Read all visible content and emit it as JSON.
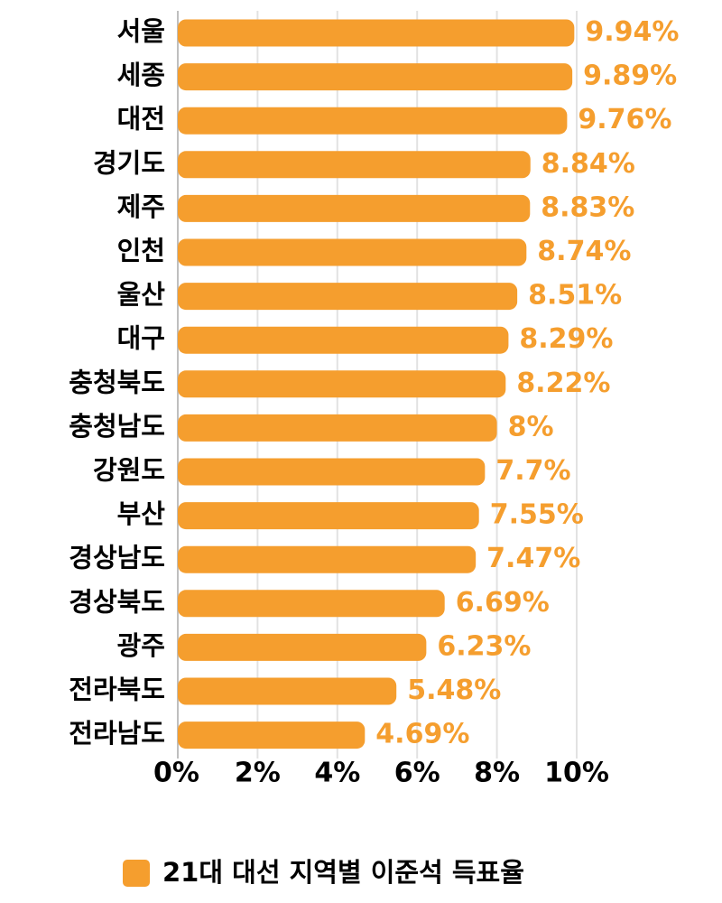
{
  "chart_data": {
    "type": "bar",
    "orientation": "horizontal",
    "categories": [
      "서울",
      "세종",
      "대전",
      "경기도",
      "제주",
      "인천",
      "울산",
      "대구",
      "충청북도",
      "충청남도",
      "강원도",
      "부산",
      "경상남도",
      "경상북도",
      "광주",
      "전라북도",
      "전라남도"
    ],
    "series": [
      {
        "name": "21대 대선 지역별 이준석 득표율",
        "values": [
          9.94,
          9.89,
          9.76,
          8.84,
          8.83,
          8.74,
          8.51,
          8.29,
          8.22,
          8,
          7.7,
          7.55,
          7.47,
          6.69,
          6.23,
          5.48,
          4.69
        ],
        "labels": [
          "9.94%",
          "9.89%",
          "9.76%",
          "8.84%",
          "8.83%",
          "8.74%",
          "8.51%",
          "8.29%",
          "8.22%",
          "8%",
          "7.7%",
          "7.55%",
          "7.47%",
          "6.69%",
          "6.23%",
          "5.48%",
          "4.69%"
        ],
        "color": "#f59e2e"
      }
    ],
    "xlim": [
      0,
      10
    ],
    "x_ticks": [
      0,
      2,
      4,
      6,
      8,
      10
    ],
    "x_tick_labels": [
      "0%",
      "2%",
      "4%",
      "6%",
      "8%",
      "10%"
    ],
    "grid": true,
    "legend_position": "bottom",
    "label_color": "#f59e2e"
  }
}
